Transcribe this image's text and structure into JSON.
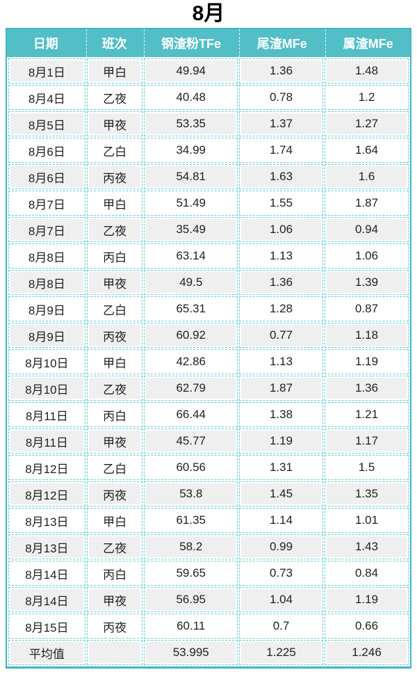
{
  "page": {
    "title": "8月"
  },
  "colors": {
    "header_bg": "#52bec6",
    "outer_border": "#3eb7c2",
    "dashed_grid": "#5ecdd8",
    "row_alt_bg": "#efefef",
    "header_text": "#ffffff",
    "body_text": "#1f1f1f"
  },
  "chart_data": {
    "type": "table",
    "title": "8月",
    "columns": [
      "日期",
      "班次",
      "钢渣粉TFe",
      "尾渣MFe",
      "属渣MFe"
    ],
    "rows": [
      [
        "8月1日",
        "甲白",
        "49.94",
        "1.36",
        "1.48"
      ],
      [
        "8月4日",
        "乙夜",
        "40.48",
        "0.78",
        "1.2"
      ],
      [
        "8月5日",
        "甲夜",
        "53.35",
        "1.37",
        "1.27"
      ],
      [
        "8月6日",
        "乙白",
        "34.99",
        "1.74",
        "1.64"
      ],
      [
        "8月6日",
        "丙夜",
        "54.81",
        "1.63",
        "1.6"
      ],
      [
        "8月7日",
        "甲白",
        "51.49",
        "1.55",
        "1.87"
      ],
      [
        "8月7日",
        "乙夜",
        "35.49",
        "1.06",
        "0.94"
      ],
      [
        "8月8日",
        "丙白",
        "63.14",
        "1.13",
        "1.06"
      ],
      [
        "8月8日",
        "甲夜",
        "49.5",
        "1.36",
        "1.39"
      ],
      [
        "8月9日",
        "乙白",
        "65.31",
        "1.28",
        "0.87"
      ],
      [
        "8月9日",
        "丙夜",
        "60.92",
        "0.77",
        "1.18"
      ],
      [
        "8月10日",
        "甲白",
        "42.86",
        "1.13",
        "1.19"
      ],
      [
        "8月10日",
        "乙夜",
        "62.79",
        "1.87",
        "1.36"
      ],
      [
        "8月11日",
        "丙白",
        "66.44",
        "1.38",
        "1.21"
      ],
      [
        "8月11日",
        "甲夜",
        "45.77",
        "1.19",
        "1.17"
      ],
      [
        "8月12日",
        "乙白",
        "60.56",
        "1.31",
        "1.5"
      ],
      [
        "8月12日",
        "丙夜",
        "53.8",
        "1.45",
        "1.35"
      ],
      [
        "8月13日",
        "甲白",
        "61.35",
        "1.14",
        "1.01"
      ],
      [
        "8月13日",
        "乙夜",
        "58.2",
        "0.99",
        "1.43"
      ],
      [
        "8月14日",
        "丙白",
        "59.65",
        "0.73",
        "0.84"
      ],
      [
        "8月14日",
        "甲夜",
        "56.95",
        "1.04",
        "1.19"
      ],
      [
        "8月15日",
        "丙夜",
        "60.11",
        "0.7",
        "0.66"
      ]
    ],
    "summary_row": [
      "平均值",
      "",
      "53.995",
      "1.225",
      "1.246"
    ],
    "layout": {
      "column_width_percents": [
        19.5,
        14.2,
        23.7,
        21.3,
        21.3
      ],
      "alternating_row_shading": true,
      "grid_style": "dashed"
    }
  }
}
